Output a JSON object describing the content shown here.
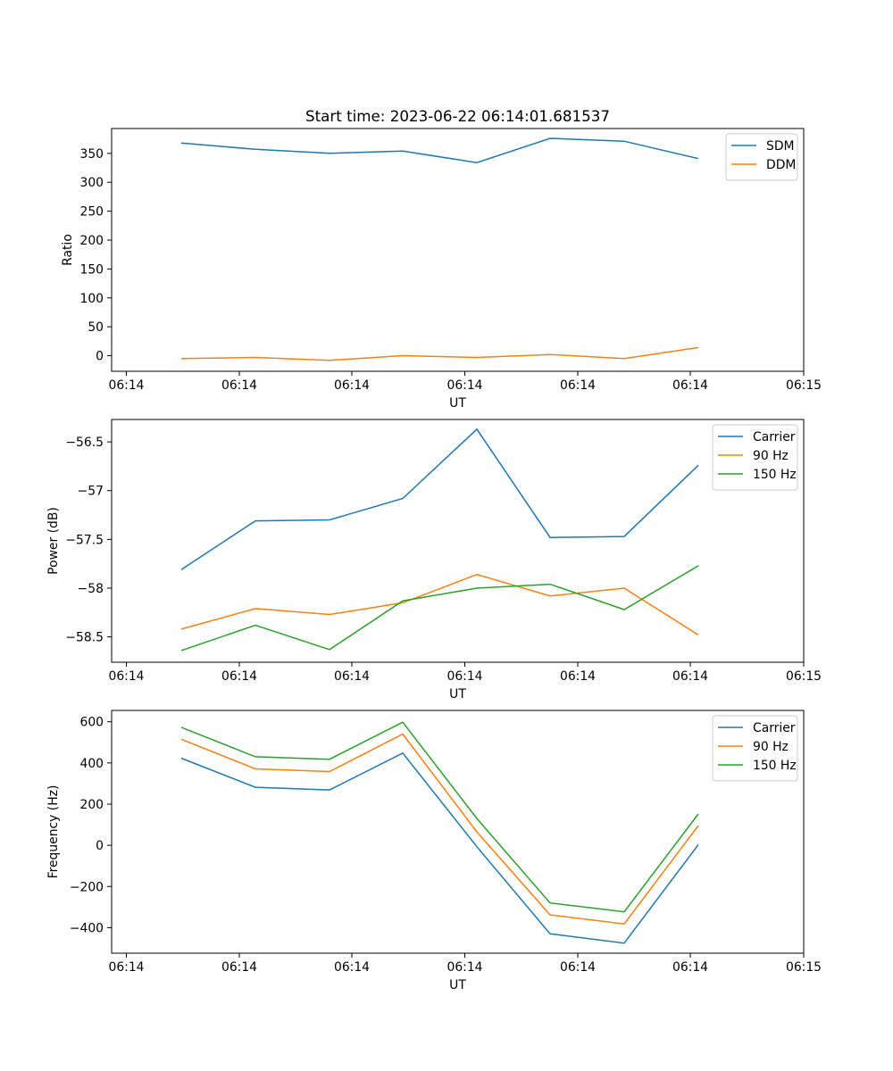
{
  "figure": {
    "title": "Start time: 2023-06-22 06:14:01.681537"
  },
  "chart_data": [
    {
      "type": "line",
      "ylabel": "Ratio",
      "xlabel": "UT",
      "x_ticks": [
        "06:14",
        "06:14",
        "06:14",
        "06:14",
        "06:14",
        "06:14",
        "06:15"
      ],
      "y_ticks": [
        0,
        50,
        100,
        150,
        200,
        250,
        300,
        350
      ],
      "ylim": [
        -27,
        393
      ],
      "legend_position": "top-right",
      "series": [
        {
          "name": "SDM",
          "color": "#1f77b4",
          "values": [
            368,
            357,
            350,
            354,
            334,
            376,
            371,
            341
          ]
        },
        {
          "name": "DDM",
          "color": "#ff7f0e",
          "values": [
            -5,
            -3,
            -8,
            0,
            -3,
            2,
            -5,
            14
          ]
        }
      ]
    },
    {
      "type": "line",
      "ylabel": "Power (dB)",
      "xlabel": "UT",
      "x_ticks": [
        "06:14",
        "06:14",
        "06:14",
        "06:14",
        "06:14",
        "06:14",
        "06:15"
      ],
      "y_ticks": [
        -56.5,
        -57.0,
        -57.5,
        -58.0,
        -58.5
      ],
      "ylim": [
        -58.76,
        -56.27
      ],
      "legend_position": "top-right",
      "series": [
        {
          "name": "Carrier",
          "color": "#1f77b4",
          "values": [
            -57.81,
            -57.31,
            -57.3,
            -57.08,
            -56.37,
            -57.48,
            -57.47,
            -56.74
          ]
        },
        {
          "name": "90 Hz",
          "color": "#ff7f0e",
          "values": [
            -58.42,
            -58.21,
            -58.27,
            -58.15,
            -57.86,
            -58.08,
            -58.0,
            -58.48
          ]
        },
        {
          "name": "150 Hz",
          "color": "#2ca02c",
          "values": [
            -58.64,
            -58.38,
            -58.63,
            -58.13,
            -58.0,
            -57.96,
            -58.22,
            -57.77
          ]
        }
      ]
    },
    {
      "type": "line",
      "ylabel": "Frequency (Hz)",
      "xlabel": "UT",
      "x_ticks": [
        "06:14",
        "06:14",
        "06:14",
        "06:14",
        "06:14",
        "06:14",
        "06:15"
      ],
      "y_ticks": [
        600,
        400,
        200,
        0,
        -200,
        -400
      ],
      "ylim": [
        -524,
        655
      ],
      "legend_position": "top-right",
      "series": [
        {
          "name": "Carrier",
          "color": "#1f77b4",
          "values": [
            423,
            282,
            269,
            448,
            -7,
            -430,
            -475,
            3
          ]
        },
        {
          "name": "90 Hz",
          "color": "#ff7f0e",
          "values": [
            515,
            371,
            358,
            540,
            65,
            -338,
            -382,
            96
          ]
        },
        {
          "name": "150 Hz",
          "color": "#2ca02c",
          "values": [
            573,
            430,
            418,
            598,
            130,
            -280,
            -323,
            152
          ]
        }
      ]
    }
  ]
}
